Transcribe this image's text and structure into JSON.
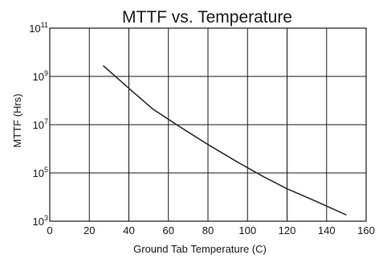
{
  "chart_data": {
    "type": "line",
    "title": "MTTF vs. Temperature",
    "xlabel": "Ground Tab Temperature (C)",
    "ylabel": "MTTF (Hrs)",
    "xlim": [
      0,
      160
    ],
    "ylim": [
      1000,
      100000000000
    ],
    "yscale": "log",
    "grid": true,
    "legend": "none",
    "x_ticks": [
      0,
      20,
      40,
      60,
      80,
      100,
      120,
      140,
      160
    ],
    "x_tick_labels": [
      "0",
      "20",
      "40",
      "60",
      "80",
      "100",
      "120",
      "140",
      "160"
    ],
    "y_ticks": [
      1000,
      100000,
      10000000,
      1000000000,
      100000000000
    ],
    "y_tick_labels": [
      {
        "base": "10",
        "exp": "3"
      },
      {
        "base": "10",
        "exp": "5"
      },
      {
        "base": "10",
        "exp": "7"
      },
      {
        "base": "10",
        "exp": "9"
      },
      {
        "base": "10",
        "exp": "11"
      }
    ],
    "series": [
      {
        "x": [
          27,
          40,
          52,
          65,
          80,
          95,
          108,
          120,
          135,
          150
        ],
        "y": [
          2800000000,
          320000000,
          45000000,
          9000000,
          1500000,
          280000,
          70000,
          22000,
          6500,
          1800
        ]
      }
    ]
  }
}
